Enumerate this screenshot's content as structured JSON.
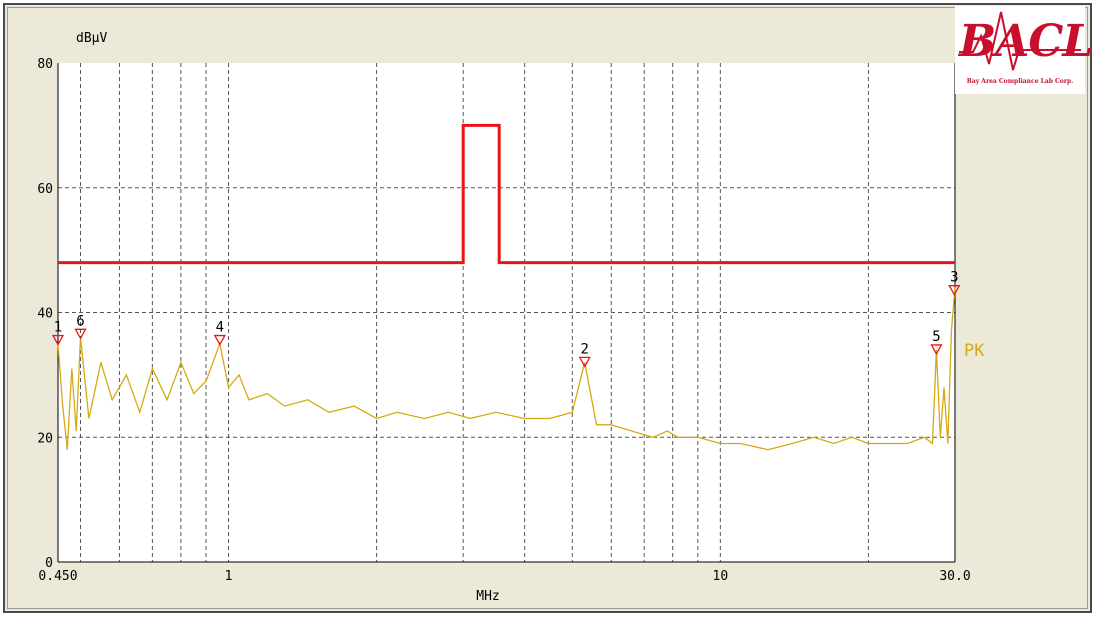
{
  "logo": {
    "name": "BACL",
    "tagline": "Bay Area Compliance Lab Corp."
  },
  "chart_data": {
    "type": "line",
    "title": "",
    "ylabel": "dBμV",
    "xlabel": "MHz",
    "x_scale": "log",
    "xlim": [
      0.45,
      30.0
    ],
    "ylim": [
      0,
      80
    ],
    "grid": true,
    "x_tick_labels": [
      "0.450",
      "1",
      "10",
      "30.0"
    ],
    "x_tick_values": [
      0.45,
      1,
      10,
      30.0
    ],
    "y_tick_labels": [
      "0",
      "20",
      "40",
      "60",
      "80"
    ],
    "y_tick_values": [
      0,
      20,
      40,
      60,
      80
    ],
    "limit_line": {
      "color": "#e8161b",
      "x": [
        0.45,
        3.0,
        3.0,
        3.55,
        3.55,
        30.0
      ],
      "y": [
        48,
        48,
        70,
        70,
        48,
        48
      ]
    },
    "measurement": {
      "name": "PK",
      "color": "#d4aa14",
      "x": [
        0.45,
        0.46,
        0.47,
        0.48,
        0.49,
        0.5,
        0.52,
        0.55,
        0.58,
        0.62,
        0.66,
        0.7,
        0.75,
        0.8,
        0.85,
        0.9,
        0.96,
        1.0,
        1.05,
        1.1,
        1.2,
        1.3,
        1.45,
        1.6,
        1.8,
        2.0,
        2.2,
        2.5,
        2.8,
        3.1,
        3.5,
        4.0,
        4.5,
        5.0,
        5.3,
        5.6,
        6.0,
        6.6,
        7.3,
        7.8,
        8.2,
        9.0,
        10.0,
        11.0,
        12.5,
        14.0,
        15.5,
        17.0,
        18.5,
        20.0,
        22.0,
        24.0,
        26.0,
        27.0,
        27.5,
        28.0,
        28.5,
        29.0,
        29.5,
        30.0
      ],
      "y": [
        35,
        25,
        18,
        31,
        21,
        36,
        23,
        32,
        26,
        30,
        24,
        31,
        26,
        32,
        27,
        29,
        35,
        28,
        30,
        26,
        27,
        25,
        26,
        24,
        25,
        23,
        24,
        23,
        24,
        23,
        24,
        23,
        23,
        24,
        32,
        22,
        22,
        21,
        20,
        21,
        20,
        20,
        19,
        19,
        18,
        19,
        20,
        19,
        20,
        19,
        19,
        19,
        20,
        19,
        34,
        20,
        28,
        19,
        37,
        44
      ]
    },
    "markers": [
      {
        "label": "1",
        "x": 0.45,
        "y": 35.5
      },
      {
        "label": "6",
        "x": 0.5,
        "y": 36.5
      },
      {
        "label": "4",
        "x": 0.96,
        "y": 35.5
      },
      {
        "label": "2",
        "x": 5.3,
        "y": 32.0
      },
      {
        "label": "5",
        "x": 27.5,
        "y": 34.0
      },
      {
        "label": "3",
        "x": 29.9,
        "y": 43.5
      }
    ]
  }
}
